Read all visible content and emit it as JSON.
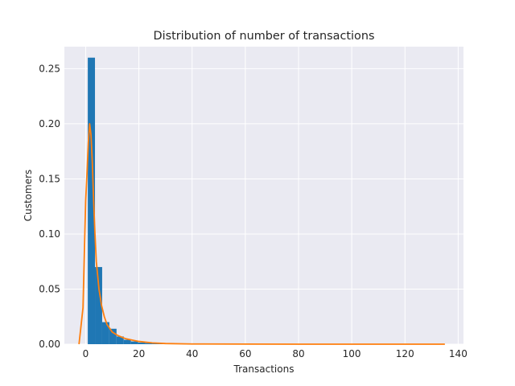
{
  "chart_data": {
    "type": "bar",
    "title": "Distribution of number of transactions",
    "xlabel": "Transactions",
    "ylabel": "Customers",
    "xlim": [
      -8,
      142
    ],
    "ylim": [
      0,
      0.27
    ],
    "xticks": [
      "0",
      "20",
      "40",
      "60",
      "80",
      "100",
      "120",
      "140"
    ],
    "yticks": [
      "0.00",
      "0.05",
      "0.10",
      "0.15",
      "0.20",
      "0.25"
    ],
    "grid": true,
    "bar_color": "#1f77b4",
    "line_color": "#ff7f0e",
    "plot_background": "#eaeaf2",
    "grid_color": "#ffffff",
    "histogram": {
      "bin_edges": [
        0.8,
        3.5,
        6.2,
        8.9,
        11.6,
        14.3,
        17.0,
        19.7,
        22.4,
        25.1,
        27.8,
        30.5
      ],
      "values": [
        0.26,
        0.07,
        0.02,
        0.014,
        0.007,
        0.004,
        0.0025,
        0.0015,
        0.001,
        0.0007,
        0.0004
      ]
    },
    "kde": {
      "x": [
        -2.5,
        -1,
        0,
        0.5,
        1,
        1.5,
        2,
        2.5,
        3,
        3.5,
        4,
        5,
        6,
        7,
        8,
        10,
        12,
        15,
        18,
        20,
        25,
        30,
        40,
        60,
        80,
        100,
        120,
        135
      ],
      "y": [
        0.0,
        0.033,
        0.13,
        0.155,
        0.183,
        0.2,
        0.19,
        0.165,
        0.13,
        0.1,
        0.075,
        0.05,
        0.035,
        0.025,
        0.018,
        0.011,
        0.008,
        0.005,
        0.0035,
        0.0025,
        0.0012,
        0.0006,
        0.0002,
        0.0001,
        0.0,
        0.0,
        0.0,
        0.0
      ]
    }
  }
}
